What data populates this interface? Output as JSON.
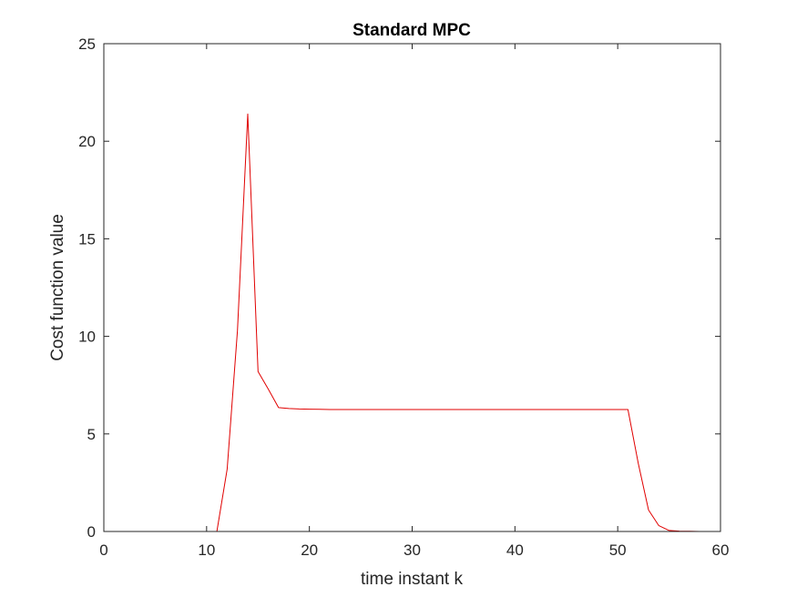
{
  "chart_data": {
    "type": "line",
    "title": "Standard MPC",
    "xlabel": "time instant k",
    "ylabel": "Cost function value",
    "xlim": [
      0,
      60
    ],
    "ylim": [
      0,
      25
    ],
    "xticks": [
      "0",
      "10",
      "20",
      "30",
      "40",
      "50",
      "60"
    ],
    "yticks": [
      "0",
      "5",
      "10",
      "15",
      "20",
      "25"
    ],
    "grid": false,
    "legend": "none",
    "series": [
      {
        "color": "#e00000",
        "x": [
          0,
          1,
          2,
          3,
          4,
          5,
          6,
          7,
          8,
          9,
          10,
          11,
          12,
          13,
          14,
          15,
          16,
          17,
          18,
          19,
          20,
          21,
          22,
          23,
          24,
          25,
          26,
          27,
          28,
          29,
          30,
          31,
          32,
          33,
          34,
          35,
          36,
          37,
          38,
          39,
          40,
          41,
          42,
          43,
          44,
          45,
          46,
          47,
          48,
          49,
          50,
          51,
          52,
          53,
          54,
          55,
          56,
          57,
          58,
          59
        ],
        "y": [
          0,
          0,
          0,
          0,
          0,
          0,
          0,
          0,
          0,
          0,
          0,
          0,
          3.2,
          10.3,
          21.4,
          8.2,
          7.3,
          6.35,
          6.3,
          6.28,
          6.27,
          6.26,
          6.25,
          6.25,
          6.25,
          6.25,
          6.25,
          6.25,
          6.25,
          6.25,
          6.25,
          6.25,
          6.25,
          6.25,
          6.25,
          6.25,
          6.25,
          6.25,
          6.25,
          6.25,
          6.25,
          6.25,
          6.25,
          6.25,
          6.25,
          6.25,
          6.25,
          6.25,
          6.25,
          6.25,
          6.25,
          6.25,
          3.5,
          1.1,
          0.3,
          0.05,
          0.02,
          0.01,
          0,
          0
        ]
      }
    ]
  }
}
